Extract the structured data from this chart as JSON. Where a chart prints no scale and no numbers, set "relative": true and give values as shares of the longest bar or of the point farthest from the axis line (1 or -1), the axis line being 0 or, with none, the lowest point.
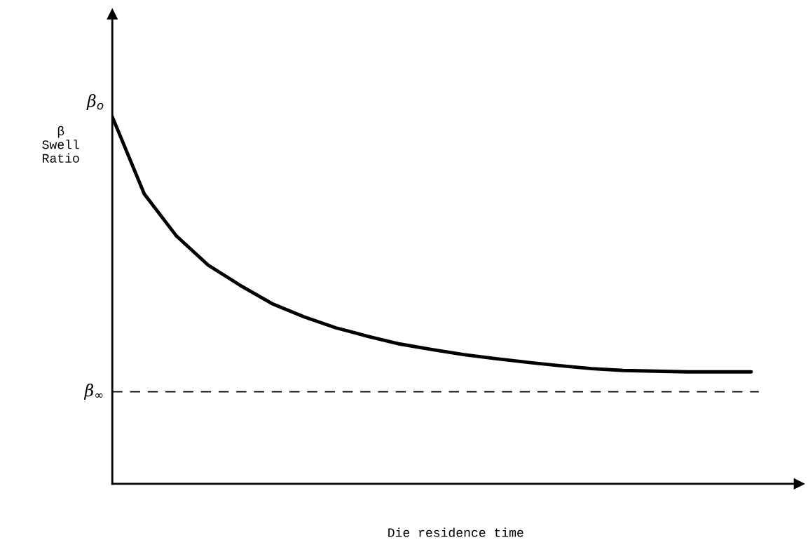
{
  "chart_data": {
    "type": "line",
    "relative": true,
    "xlabel": "Die residence time",
    "ylabel": "β\nSwell\nRatio",
    "categories": [
      null,
      null,
      null,
      null,
      null,
      null,
      null,
      null,
      null,
      null,
      null,
      null,
      null,
      null,
      null,
      null,
      null,
      null,
      null,
      null,
      null
    ],
    "series": [
      {
        "color": "#000000",
        "values": [
          1.0,
          0.79,
          0.676,
          0.596,
          0.541,
          0.491,
          0.455,
          0.425,
          0.402,
          0.381,
          0.366,
          0.352,
          0.341,
          0.331,
          0.322,
          0.314,
          0.309,
          0.307,
          0.305,
          0.305,
          0.305
        ]
      }
    ],
    "ref_lines": [
      {
        "axis": "y",
        "value": 0.251,
        "label": "β$_{∞}$",
        "color": "#000000",
        "line_style": "dashed"
      }
    ],
    "annotations": [
      "β$_{o}$"
    ],
    "marker": "none",
    "line_style": "solid",
    "legend": false
  }
}
